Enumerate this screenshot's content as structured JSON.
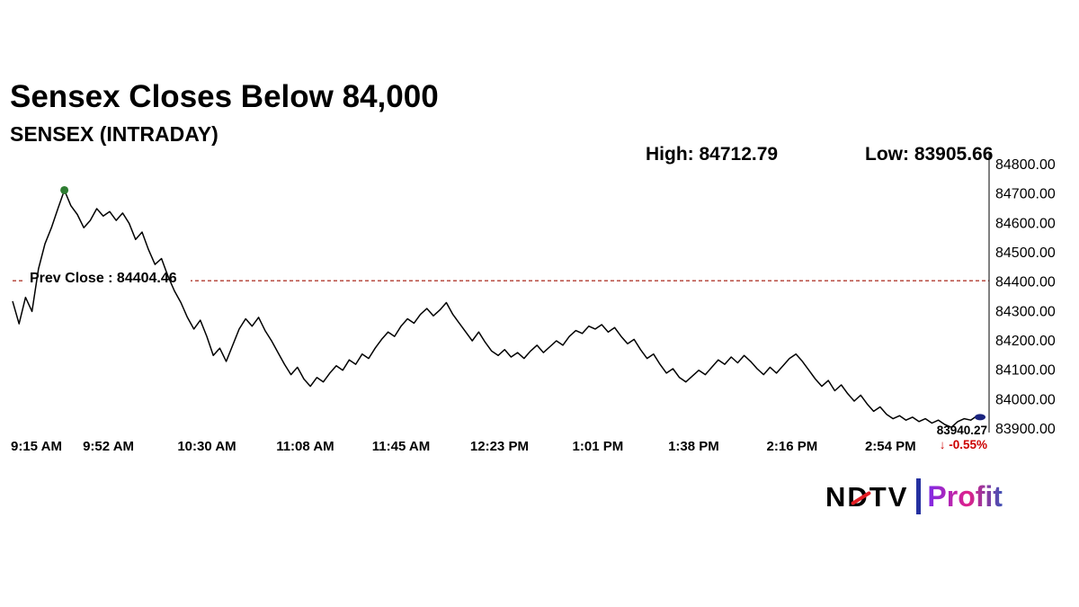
{
  "header": {
    "title": "Sensex Closes Below 84,000",
    "subtitle": "SENSEX (INTRADAY)"
  },
  "stats": {
    "high_label": "High: 84712.79",
    "low_label": "Low: 83905.66"
  },
  "logo": {
    "brand": "NDTV",
    "product": "Profit",
    "brand_color": "#000000",
    "accent_red": "#e31e24",
    "separator_color": "#2430a0",
    "gradient": [
      "#7d2ae8",
      "#e0218a",
      "#3f51b5"
    ]
  },
  "chart_data": {
    "type": "line",
    "title": "SENSEX (INTRADAY)",
    "grid": false,
    "legend": false,
    "x_range_minutes": [
      0,
      375
    ],
    "interval_minutes": 2.5,
    "start_time": "9:15 AM",
    "ylim": [
      83900,
      84800
    ],
    "y_ticks": [
      84800,
      84700,
      84600,
      84500,
      84400,
      84300,
      84200,
      84100,
      84000,
      83900
    ],
    "x_ticks": [
      {
        "minute": 0,
        "label": "9:15 AM"
      },
      {
        "minute": 37,
        "label": "9:52 AM"
      },
      {
        "minute": 75,
        "label": "10:30 AM"
      },
      {
        "minute": 113,
        "label": "11:08 AM"
      },
      {
        "minute": 150,
        "label": "11:45 AM"
      },
      {
        "minute": 188,
        "label": "12:23 PM"
      },
      {
        "minute": 226,
        "label": "1:01 PM"
      },
      {
        "minute": 263,
        "label": "1:38 PM"
      },
      {
        "minute": 301,
        "label": "2:16 PM"
      },
      {
        "minute": 339,
        "label": "2:54 PM"
      }
    ],
    "prev_close": {
      "label": "Prev Close : 84404.46",
      "value": 84404.46,
      "color": "#b03a2e"
    },
    "high": {
      "value": 84712.79,
      "marker_color": "#2e7d32"
    },
    "low": {
      "value": 83905.66
    },
    "last": {
      "value": 83940.27,
      "label": "83940.27",
      "arrow": "↓",
      "change_label": "-0.55%",
      "color": "#cc0000",
      "marker_color": "#1a237e"
    },
    "series": [
      {
        "name": "SENSEX",
        "color": "#000000",
        "values": [
          84335,
          84258,
          84348,
          84300,
          84445,
          84530,
          84585,
          84650,
          84712.79,
          84660,
          84630,
          84585,
          84610,
          84650,
          84625,
          84640,
          84610,
          84635,
          84600,
          84545,
          84570,
          84510,
          84460,
          84480,
          84420,
          84370,
          84330,
          84280,
          84240,
          84270,
          84215,
          84150,
          84175,
          84130,
          84185,
          84240,
          84275,
          84250,
          84280,
          84235,
          84200,
          84160,
          84120,
          84085,
          84110,
          84070,
          84045,
          84075,
          84060,
          84090,
          84115,
          84100,
          84135,
          84120,
          84155,
          84140,
          84175,
          84205,
          84230,
          84215,
          84250,
          84275,
          84260,
          84290,
          84310,
          84285,
          84305,
          84330,
          84290,
          84260,
          84230,
          84200,
          84230,
          84195,
          84165,
          84150,
          84170,
          84145,
          84160,
          84140,
          84165,
          84185,
          84160,
          84180,
          84200,
          84185,
          84215,
          84235,
          84225,
          84250,
          84240,
          84255,
          84230,
          84245,
          84215,
          84190,
          84205,
          84170,
          84140,
          84155,
          84120,
          84090,
          84105,
          84075,
          84060,
          84080,
          84100,
          84085,
          84110,
          84135,
          84120,
          84145,
          84125,
          84150,
          84130,
          84105,
          84085,
          84110,
          84090,
          84115,
          84140,
          84155,
          84130,
          84100,
          84070,
          84045,
          84065,
          84030,
          84050,
          84020,
          83995,
          84015,
          83985,
          83960,
          83975,
          83950,
          83935,
          83945,
          83930,
          83940,
          83925,
          83935,
          83920,
          83930,
          83915,
          83905.66,
          83925,
          83935,
          83930,
          83945,
          83940.27
        ]
      }
    ]
  }
}
